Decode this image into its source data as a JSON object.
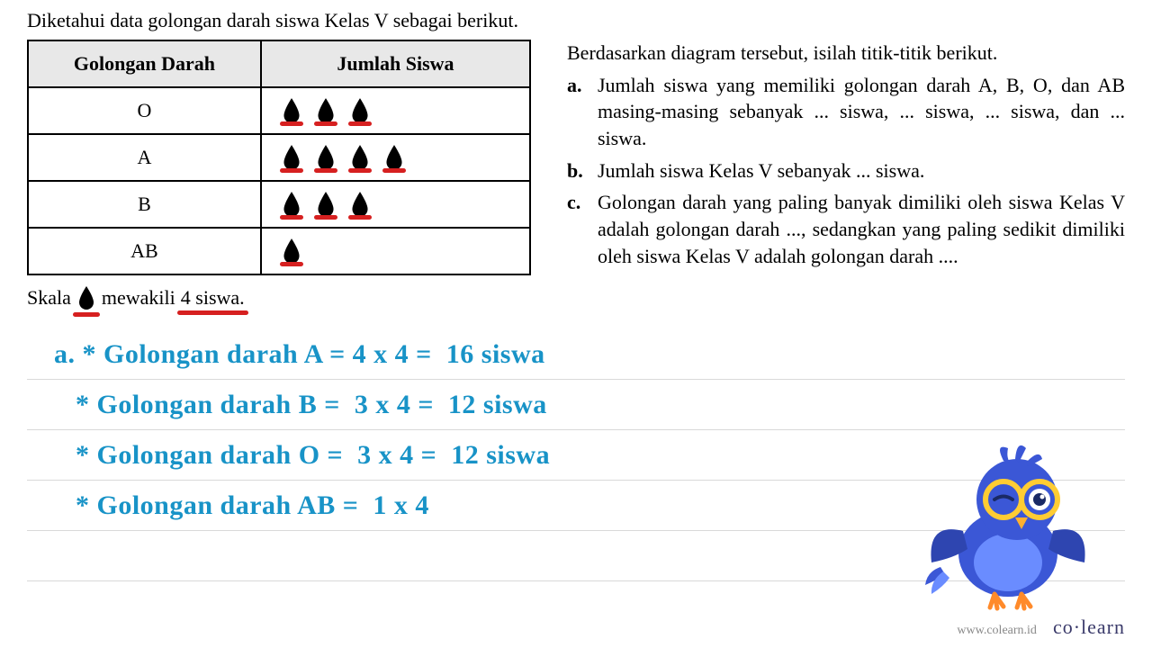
{
  "intro": "Diketahui data golongan darah siswa Kelas V sebagai berikut.",
  "table": {
    "headers": {
      "col1": "Golongan Darah",
      "col2": "Jumlah Siswa"
    },
    "rows": [
      {
        "label": "O",
        "drops": 3
      },
      {
        "label": "A",
        "drops": 4
      },
      {
        "label": "B",
        "drops": 3
      },
      {
        "label": "AB",
        "drops": 1
      }
    ],
    "drop_color": "#000000",
    "underline_color": "#d62020"
  },
  "skala": {
    "prefix": "Skala",
    "mid": "mewakili",
    "value": "4 siswa."
  },
  "questions": {
    "intro": "Berdasarkan diagram tersebut, isilah titik-titik berikut.",
    "items": [
      {
        "letter": "a.",
        "text": "Jumlah siswa yang memiliki golongan darah A, B, O, dan AB masing-masing sebanyak ... siswa, ... siswa, ... siswa, dan ... siswa."
      },
      {
        "letter": "b.",
        "text": "Jumlah siswa Kelas V sebanyak ... siswa."
      },
      {
        "letter": "c.",
        "text": "Golongan darah yang paling banyak dimiliki oleh siswa Kelas V adalah golongan darah ..., sedangkan yang paling sedikit dimiliki oleh siswa Kelas V adalah golongan darah ...."
      }
    ]
  },
  "answers": {
    "color": "#1893c7",
    "lines": [
      "a. * Golongan darah A = 4 x 4 =  16 siswa",
      "   * Golongan darah B =  3 x 4 =  12 siswa",
      "   * Golongan darah O =  3 x 4 =  12 siswa",
      "   * Golongan darah AB =  1 x 4"
    ]
  },
  "brand": {
    "url": "www.colearn.id",
    "name": "co·learn"
  },
  "mascot": {
    "body_color": "#3b57d6",
    "accent_color": "#6a8cff",
    "beak_color": "#ffb030",
    "glasses_color": "#ffcc33",
    "feet_color": "#ff8a2a"
  }
}
